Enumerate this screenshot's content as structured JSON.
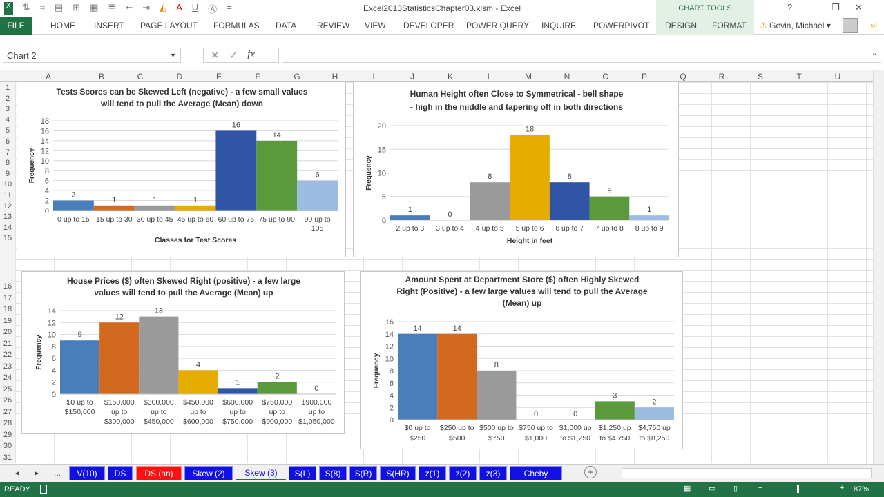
{
  "window": {
    "title": "Excel2013StatisticsChapter03.xlsm - Excel",
    "chart_tools": "CHART TOOLS",
    "help": "?",
    "min": "—",
    "restore": "❐",
    "close": "✕"
  },
  "ribbon": {
    "file": "FILE",
    "tabs": [
      "HOME",
      "INSERT",
      "PAGE LAYOUT",
      "FORMULAS",
      "DATA",
      "REVIEW",
      "VIEW",
      "DEVELOPER",
      "POWER QUERY",
      "INQUIRE",
      "POWERPIVOT",
      "DESIGN",
      "FORMAT"
    ],
    "user": "Gevin, Michael"
  },
  "formula_bar": {
    "name_box": "Chart 2",
    "formula": ""
  },
  "columns": [
    "A",
    "B",
    "C",
    "D",
    "E",
    "F",
    "G",
    "H",
    "I",
    "J",
    "K",
    "L",
    "M",
    "N",
    "O",
    "P",
    "Q",
    "R",
    "S",
    "T",
    "U"
  ],
  "rows": [
    "1",
    "2",
    "3",
    "4",
    "5",
    "6",
    "7",
    "8",
    "9",
    "10",
    "11",
    "12",
    "13",
    "14",
    "15",
    "16",
    "17",
    "18",
    "19",
    "20",
    "21",
    "22",
    "23",
    "24",
    "25",
    "26",
    "27",
    "28",
    "29",
    "30",
    "31"
  ],
  "colors": {
    "blue": "#4a7ebb",
    "orange": "#d2691e",
    "gray": "#9a9a9a",
    "gold": "#e6ad00",
    "darkblue": "#2f55a4",
    "green": "#5b9a3c",
    "lightblue": "#9cbce4"
  },
  "chart_data": [
    {
      "type": "bar",
      "title": [
        "Tests Scores can be Skewed Left (negative) - a few small values",
        "will tend to pull the Average (Mean) down"
      ],
      "categories": [
        "0 up to 15",
        "15 up to 30",
        "30 up to 45",
        "45 up to 60",
        "60 up to 75",
        "75 up to 90",
        "90 up to\n105"
      ],
      "values": [
        2,
        1,
        1,
        1,
        16,
        14,
        6
      ],
      "xlabel": "Classes for Test Scores",
      "ylabel": "Frequency",
      "ylim": [
        0,
        18
      ],
      "ystep": 2
    },
    {
      "type": "bar",
      "title": [
        "Human Height often Close to Symmetrical - bell shape",
        "- high in the middle and tapering off in both directions"
      ],
      "categories": [
        "2 up to 3",
        "3 up to 4",
        "4 up to 5",
        "5 up to 6",
        "6 up to 7",
        "7 up to 8",
        "8 up to 9"
      ],
      "values": [
        1,
        0,
        8,
        18,
        8,
        5,
        1
      ],
      "xlabel": "Height in feet",
      "ylabel": "Frequency",
      "ylim": [
        0,
        20
      ],
      "ystep": 5
    },
    {
      "type": "bar",
      "title": [
        "House Prices ($)  often Skewed Right (positive) - a few large",
        "values will tend to pull the Average (Mean) up"
      ],
      "categories": [
        "$0 up to\n$150,000",
        "$150,000\nup to\n$300,000",
        "$300,000\nup to\n$450,000",
        "$450,000\nup to\n$600,000",
        "$600,000\nup to\n$750,000",
        "$750,000\nup to\n$900,000",
        "$900,000\nup to\n$1,050,000"
      ],
      "values": [
        9,
        12,
        13,
        4,
        1,
        2,
        0
      ],
      "xlabel": "",
      "ylabel": "Frequency",
      "ylim": [
        0,
        14
      ],
      "ystep": 2
    },
    {
      "type": "bar",
      "title": [
        "Amount Spent at Department Store ($) often Highly Skewed",
        "Right (Positive) - a few large values will tend to pull the Average",
        "(Mean) up"
      ],
      "categories": [
        "$0 up to\n$250",
        "$250 up to\n$500",
        "$500 up to\n$750",
        "$750 up to\n$1,000",
        "$1,000 up\nto $1,250",
        "$1,250 up\nto $4,750",
        "$4,750 up\nto $8,250"
      ],
      "values": [
        14,
        14,
        8,
        0,
        0,
        3,
        2
      ],
      "xlabel": "",
      "ylabel": "Frequency",
      "ylim": [
        0,
        16
      ],
      "ystep": 2
    }
  ],
  "sheet_tabs": {
    "nav_more": "...",
    "tabs": [
      "V(10)",
      "DS",
      "DS (an)",
      "Skew (2)",
      "Skew (3)",
      "S(L)",
      "S(8)",
      "S(R)",
      "S(HR)",
      "z(1)",
      "z(2)",
      "z(3)",
      "Cheby"
    ],
    "active": "Skew (3)",
    "add": "+"
  },
  "status": {
    "ready": "READY",
    "zoom": "87%"
  }
}
